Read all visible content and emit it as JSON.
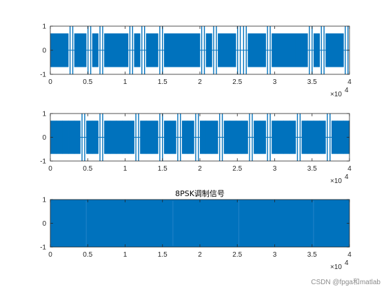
{
  "chart_data": [
    {
      "type": "line",
      "title": "",
      "xlabel": "",
      "ylabel": "",
      "xlim": [
        0,
        40000
      ],
      "ylim": [
        -1,
        1
      ],
      "x_tick_labels": [
        "0",
        "0.5",
        "1",
        "1.5",
        "2",
        "2.5",
        "3",
        "3.5",
        "4"
      ],
      "y_tick_labels": [
        "-1",
        "0",
        "1"
      ],
      "x_exponent": "4",
      "signal_amplitude": 0.7,
      "segments": [
        "A",
        "A",
        "A",
        "G",
        "A",
        "A",
        "G",
        "A",
        "G",
        "A",
        "A",
        "A",
        "A",
        "G",
        "A",
        "G",
        "A",
        "A",
        "G",
        "A",
        "A",
        "A",
        "A",
        "A",
        "A",
        "G",
        "A",
        "G",
        "A",
        "A",
        "A",
        "G",
        "G",
        "A",
        "A",
        "A",
        "G",
        "A",
        "A",
        "A",
        "A",
        "A",
        "A",
        "G",
        "A",
        "G",
        "A",
        "A",
        "A",
        "G"
      ],
      "series": [
        {
          "color": "#0072BD"
        }
      ]
    },
    {
      "type": "line",
      "title": "",
      "xlabel": "",
      "ylabel": "",
      "xlim": [
        0,
        40000
      ],
      "ylim": [
        -1,
        1
      ],
      "x_tick_labels": [
        "0",
        "0.5",
        "1",
        "1.5",
        "2",
        "2.5",
        "3",
        "3.5",
        "4"
      ],
      "y_tick_labels": [
        "-1",
        "0",
        "1"
      ],
      "x_exponent": "4",
      "signal_amplitude": 0.7,
      "segments": [
        "A",
        "A",
        "A",
        "A",
        "A",
        "G",
        "A",
        "A",
        "G",
        "A",
        "A",
        "A",
        "A",
        "A",
        "G",
        "A",
        "A",
        "A",
        "G",
        "A",
        "A",
        "G",
        "A",
        "A",
        "G",
        "A",
        "A",
        "A",
        "G",
        "A",
        "A",
        "A",
        "A",
        "G",
        "A",
        "A",
        "G",
        "A",
        "A",
        "A",
        "A",
        "G",
        "A",
        "A",
        "A",
        "A",
        "G",
        "A",
        "A",
        "A"
      ],
      "series": [
        {
          "color": "#0072BD"
        }
      ]
    },
    {
      "type": "line",
      "title": "8PSK调制信号",
      "xlabel": "",
      "ylabel": "",
      "xlim": [
        0,
        40000
      ],
      "ylim": [
        -1,
        1
      ],
      "x_tick_labels": [
        "0",
        "0.5",
        "1",
        "1.5",
        "2",
        "2.5",
        "3",
        "3.5",
        "4"
      ],
      "y_tick_labels": [
        "-1",
        "0",
        "1"
      ],
      "x_exponent": "4",
      "signal_amplitude": 1.0,
      "segments": [],
      "series": [
        {
          "color": "#0072BD"
        }
      ]
    }
  ],
  "watermark": "CSDN @fpga和matlab"
}
